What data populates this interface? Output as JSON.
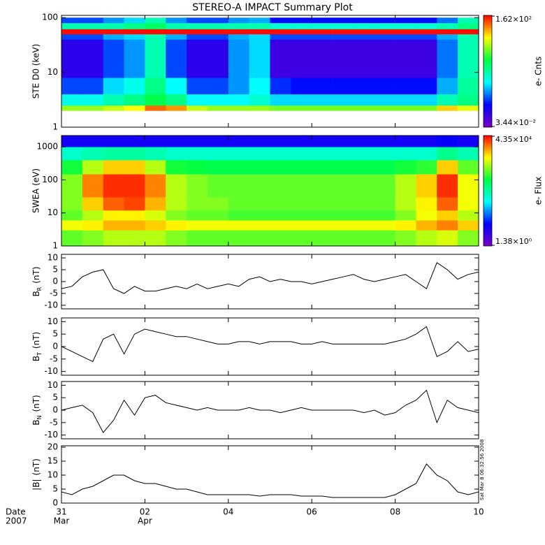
{
  "title": "STEREO-A IMPACT Summary Plot",
  "time_axis": {
    "label": "Date",
    "year": "2007",
    "xlim": [
      0,
      10
    ],
    "xticks": [
      {
        "value": 0,
        "label": "31",
        "month": "Mar"
      },
      {
        "value": 2,
        "label": "02",
        "month": "Apr"
      },
      {
        "value": 4,
        "label": "04"
      },
      {
        "value": 6,
        "label": "06"
      },
      {
        "value": 8,
        "label": "08"
      },
      {
        "value": 10,
        "label": "10"
      }
    ]
  },
  "timestamp": "Sat Mar  8 06:32:56 2008",
  "colormap": [
    "#7a00c8",
    "#0000ff",
    "#00ffff",
    "#00ff40",
    "#ffff00",
    "#ff0000"
  ],
  "chart_data": [
    {
      "type": "heatmap",
      "ylabel": "STE D0 (keV)",
      "ylog": true,
      "ylim": [
        1,
        110
      ],
      "yticks": [
        1,
        10,
        100
      ],
      "colorbar_label": "e- Cnts",
      "clim": [
        {
          "value": 0.0344,
          "label": "3.44×10⁻²"
        },
        {
          "value": 162,
          "label": "1.62×10²"
        }
      ],
      "x_edges": [
        0,
        0.5,
        1,
        1.5,
        2,
        2.5,
        3,
        3.5,
        4,
        4.5,
        5,
        5.5,
        6,
        6.5,
        7,
        7.5,
        8,
        8.5,
        9,
        9.5,
        10
      ],
      "y_edges": [
        2,
        2.5,
        4,
        8,
        40,
        50,
        62,
        80,
        100
      ],
      "values": [
        [
          15,
          15,
          20,
          30,
          80,
          60,
          20,
          15,
          15,
          15,
          12,
          12,
          12,
          12,
          12,
          12,
          12,
          12,
          40,
          25
        ],
        [
          1.2,
          1.2,
          2,
          3,
          5,
          3,
          1,
          1,
          1,
          1.5,
          0.8,
          0.8,
          0.8,
          0.8,
          0.8,
          0.8,
          0.8,
          0.8,
          2,
          3
        ],
        [
          0.3,
          0.3,
          0.8,
          1.2,
          3,
          1,
          0.3,
          0.3,
          0.5,
          1,
          0.25,
          0.2,
          0.2,
          0.2,
          0.2,
          0.2,
          0.2,
          0.2,
          0.6,
          2.5
        ],
        [
          0.1,
          0.1,
          0.3,
          0.5,
          2,
          0.3,
          0.1,
          0.1,
          0.5,
          0.8,
          0.08,
          0.08,
          0.08,
          0.08,
          0.08,
          0.08,
          0.08,
          0.08,
          0.4,
          2
        ],
        [
          0.3,
          0.3,
          0.6,
          0.8,
          2,
          0.6,
          0.3,
          0.3,
          0.6,
          0.8,
          0.3,
          0.3,
          0.3,
          0.3,
          0.3,
          0.3,
          0.3,
          0.3,
          0.6,
          2
        ],
        [
          150,
          150,
          150,
          150,
          150,
          150,
          150,
          150,
          150,
          150,
          150,
          150,
          150,
          150,
          150,
          150,
          150,
          150,
          150,
          150
        ],
        [
          2,
          2,
          2,
          3,
          4,
          2,
          2,
          2,
          2,
          2,
          1.5,
          1.5,
          1.5,
          1.5,
          1.5,
          1.5,
          1.5,
          1.5,
          2,
          3
        ],
        [
          0.3,
          0.3,
          0.5,
          0.8,
          2,
          0.5,
          0.3,
          0.3,
          0.5,
          0.6,
          0.2,
          0.2,
          0.2,
          0.2,
          0.2,
          0.2,
          0.2,
          0.2,
          0.4,
          2
        ]
      ]
    },
    {
      "type": "heatmap",
      "ylabel": "SWEA (eV)",
      "ylog": true,
      "ylim": [
        1,
        2200
      ],
      "yticks": [
        1,
        10,
        100,
        1000
      ],
      "colorbar_label": "e- Flux",
      "clim": [
        {
          "value": 1.38,
          "label": "1.38×10⁰"
        },
        {
          "value": 43500,
          "label": "4.35×10⁴"
        }
      ],
      "x_edges": [
        0,
        0.5,
        1,
        1.5,
        2,
        2.5,
        3,
        3.5,
        4,
        4.5,
        5,
        5.5,
        6,
        6.5,
        7,
        7.5,
        8,
        8.5,
        9,
        9.5,
        10
      ],
      "y_edges": [
        1,
        3,
        6,
        12,
        30,
        150,
        400,
        1000,
        2200
      ],
      "values": [
        [
          1500,
          2000,
          3000,
          3000,
          3000,
          2000,
          1500,
          1500,
          1500,
          1500,
          1500,
          1500,
          1500,
          1500,
          1500,
          1500,
          2000,
          3000,
          4000,
          2000
        ],
        [
          5000,
          6000,
          10000,
          10000,
          8000,
          6000,
          5000,
          5000,
          5000,
          5000,
          5000,
          5000,
          5000,
          5000,
          5000,
          5000,
          6000,
          10000,
          15000,
          8000
        ],
        [
          1500,
          3000,
          6000,
          6000,
          4000,
          2000,
          1500,
          1500,
          1200,
          1200,
          1200,
          1200,
          1200,
          1200,
          1200,
          1200,
          2000,
          5000,
          8000,
          3000
        ],
        [
          2000,
          8000,
          20000,
          25000,
          10000,
          3000,
          2000,
          2000,
          1500,
          1500,
          1500,
          1500,
          1500,
          1500,
          1500,
          1500,
          3000,
          6000,
          20000,
          5000
        ],
        [
          2000,
          15000,
          30000,
          30000,
          15000,
          3000,
          2000,
          1500,
          1500,
          1500,
          1500,
          1500,
          1500,
          1500,
          1500,
          1500,
          3000,
          8000,
          30000,
          5000
        ],
        [
          800,
          3000,
          8000,
          8000,
          3000,
          800,
          700,
          600,
          600,
          600,
          600,
          600,
          600,
          600,
          600,
          600,
          800,
          1000,
          8000,
          1500
        ],
        [
          150,
          200,
          250,
          250,
          200,
          150,
          150,
          150,
          150,
          150,
          150,
          150,
          150,
          150,
          150,
          150,
          150,
          150,
          300,
          200
        ],
        [
          8,
          8,
          8,
          8,
          8,
          8,
          8,
          8,
          8,
          8,
          8,
          8,
          8,
          8,
          8,
          8,
          8,
          8,
          10,
          8
        ]
      ]
    },
    {
      "type": "line",
      "ylabel": {
        "main": "B",
        "sub": "R",
        "unit": "(nT)"
      },
      "ylim": [
        -11.5,
        11.5
      ],
      "yticks": [
        -10,
        -5,
        0,
        5,
        10
      ],
      "color": "#000000",
      "x": [
        0,
        0.25,
        0.5,
        0.75,
        1,
        1.25,
        1.5,
        1.75,
        2,
        2.25,
        2.5,
        2.75,
        3,
        3.25,
        3.5,
        3.75,
        4,
        4.25,
        4.5,
        4.75,
        5,
        5.25,
        5.5,
        5.75,
        6,
        6.25,
        6.5,
        6.75,
        7,
        7.25,
        7.5,
        7.75,
        8,
        8.25,
        8.5,
        8.75,
        9,
        9.25,
        9.5,
        9.75,
        10
      ],
      "values": [
        -3,
        -2,
        2,
        4,
        5,
        -3,
        -5,
        -2,
        -4,
        -4,
        -3,
        -2,
        -3,
        -1,
        -3,
        -2,
        -1,
        -2,
        1,
        2,
        0,
        1,
        0,
        0,
        -1,
        0,
        1,
        2,
        3,
        1,
        0,
        1,
        2,
        3,
        0,
        -3,
        8,
        5,
        1,
        3,
        4
      ]
    },
    {
      "type": "line",
      "ylabel": {
        "main": "B",
        "sub": "T",
        "unit": "(nT)"
      },
      "ylim": [
        -11.5,
        11.5
      ],
      "yticks": [
        -10,
        -5,
        0,
        5,
        10
      ],
      "color": "#000000",
      "x": [
        0,
        0.25,
        0.5,
        0.75,
        1,
        1.25,
        1.5,
        1.75,
        2,
        2.25,
        2.5,
        2.75,
        3,
        3.25,
        3.5,
        3.75,
        4,
        4.25,
        4.5,
        4.75,
        5,
        5.25,
        5.5,
        5.75,
        6,
        6.25,
        6.5,
        6.75,
        7,
        7.25,
        7.5,
        7.75,
        8,
        8.25,
        8.5,
        8.75,
        9,
        9.25,
        9.5,
        9.75,
        10
      ],
      "values": [
        0,
        -2,
        -4,
        -6,
        3,
        5,
        -3,
        5,
        7,
        6,
        5,
        4,
        4,
        3,
        2,
        1,
        1,
        2,
        2,
        1,
        2,
        2,
        2,
        1,
        1,
        2,
        1,
        1,
        1,
        1,
        1,
        1,
        2,
        3,
        5,
        8,
        -4,
        -2,
        2,
        -2,
        -1
      ]
    },
    {
      "type": "line",
      "ylabel": {
        "main": "B",
        "sub": "N",
        "unit": "(nT)"
      },
      "ylim": [
        -11.5,
        11.5
      ],
      "yticks": [
        -10,
        -5,
        0,
        5,
        10
      ],
      "color": "#000000",
      "x": [
        0,
        0.25,
        0.5,
        0.75,
        1,
        1.25,
        1.5,
        1.75,
        2,
        2.25,
        2.5,
        2.75,
        3,
        3.25,
        3.5,
        3.75,
        4,
        4.25,
        4.5,
        4.75,
        5,
        5.25,
        5.5,
        5.75,
        6,
        6.25,
        6.5,
        6.75,
        7,
        7.25,
        7.5,
        7.75,
        8,
        8.25,
        8.5,
        8.75,
        9,
        9.25,
        9.5,
        9.75,
        10
      ],
      "values": [
        0,
        1,
        2,
        -1,
        -9,
        -4,
        4,
        -2,
        5,
        6,
        3,
        2,
        1,
        0,
        1,
        0,
        0,
        0,
        1,
        0,
        0,
        -1,
        0,
        1,
        0,
        0,
        0,
        0,
        0,
        -1,
        0,
        -2,
        -1,
        2,
        4,
        8,
        -5,
        4,
        1,
        0,
        -1
      ]
    },
    {
      "type": "line",
      "ylabel": {
        "main": "|B|",
        "unit": "(nT)"
      },
      "ylim": [
        0,
        20.5
      ],
      "yticks": [
        0,
        5,
        10,
        15,
        20
      ],
      "color": "#000000",
      "x": [
        0,
        0.25,
        0.5,
        0.75,
        1,
        1.25,
        1.5,
        1.75,
        2,
        2.25,
        2.5,
        2.75,
        3,
        3.25,
        3.5,
        3.75,
        4,
        4.25,
        4.5,
        4.75,
        5,
        5.25,
        5.5,
        5.75,
        6,
        6.25,
        6.5,
        6.75,
        7,
        7.25,
        7.5,
        7.75,
        8,
        8.25,
        8.5,
        8.75,
        9,
        9.25,
        9.5,
        9.75,
        10
      ],
      "values": [
        4,
        3,
        5,
        6,
        8,
        10,
        10,
        8,
        7,
        7,
        6,
        5,
        5,
        4,
        3,
        3,
        3,
        3,
        3,
        2.5,
        3,
        3,
        3,
        2.5,
        2.5,
        2.5,
        2,
        2,
        2,
        2,
        2,
        2,
        3,
        5,
        7,
        14,
        10,
        8,
        4,
        3,
        4
      ]
    }
  ]
}
